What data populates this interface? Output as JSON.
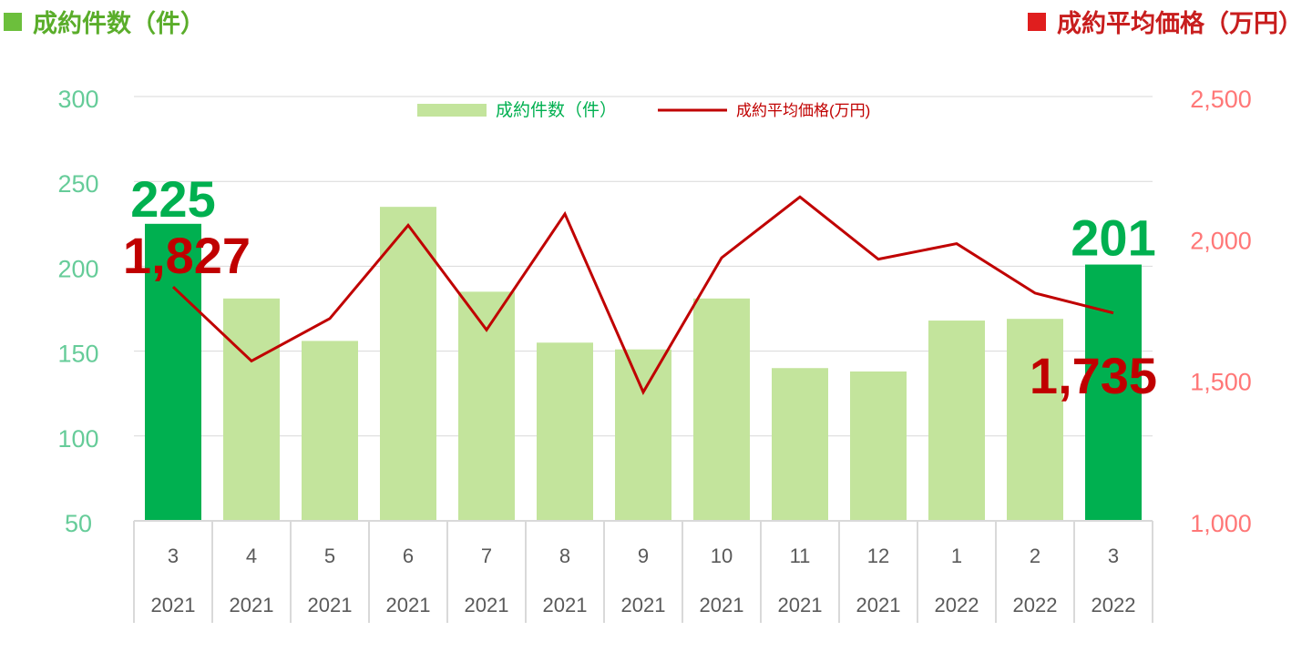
{
  "header": {
    "left_title": "成約件数（件）",
    "right_title": "成約平均価格（万円）"
  },
  "colors": {
    "bar": "#c3e49c",
    "bar_highlight": "#00b050",
    "line": "#c00000",
    "left_axis_text": "#66cc99",
    "right_axis_text": "#ff7777",
    "left_title": "#5aad2a",
    "right_title": "#c81e1e"
  },
  "chart_data": {
    "type": "bar",
    "categories": [
      [
        "3",
        "2021"
      ],
      [
        "4",
        "2021"
      ],
      [
        "5",
        "2021"
      ],
      [
        "6",
        "2021"
      ],
      [
        "7",
        "2021"
      ],
      [
        "8",
        "2021"
      ],
      [
        "9",
        "2021"
      ],
      [
        "10",
        "2021"
      ],
      [
        "11",
        "2021"
      ],
      [
        "12",
        "2021"
      ],
      [
        "1",
        "2022"
      ],
      [
        "2",
        "2022"
      ],
      [
        "3",
        "2022"
      ]
    ],
    "series": [
      {
        "name": "成約件数（件）",
        "type": "bar",
        "axis": "left",
        "values": [
          225,
          181,
          156,
          235,
          185,
          155,
          151,
          181,
          140,
          138,
          168,
          169,
          201
        ],
        "highlight": [
          0,
          12
        ]
      },
      {
        "name": "成約平均価格(万円)",
        "type": "line",
        "axis": "right",
        "values": [
          1827,
          1565,
          1715,
          2045,
          1675,
          2085,
          1455,
          1930,
          2145,
          1925,
          1980,
          1805,
          1735
        ]
      }
    ],
    "y_left": {
      "ylim": [
        50,
        300
      ],
      "ticks": [
        "300",
        "250",
        "200",
        "150",
        "100",
        "50"
      ]
    },
    "y_right": {
      "ylim": [
        1000,
        2500
      ],
      "ticks": [
        "2,500",
        "2,000",
        "1,500",
        "1,000"
      ]
    },
    "annotations": {
      "bar_first": "225",
      "bar_last": "201",
      "line_first": "1,827",
      "line_last": "1,735"
    },
    "legend_position": "top-center",
    "grid": true
  }
}
